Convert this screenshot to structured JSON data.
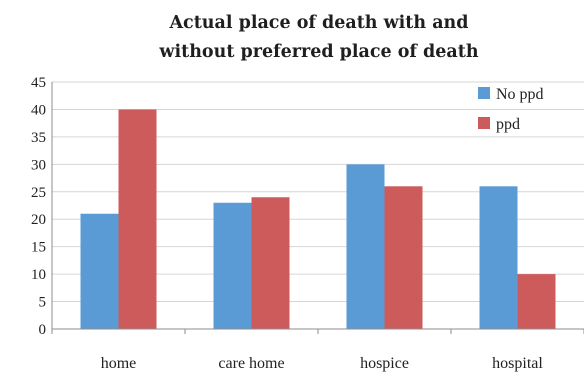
{
  "chart_data": {
    "type": "bar",
    "title_lines": [
      "Actual place of death with and",
      "without preferred place of death"
    ],
    "categories": [
      "home",
      "care home",
      "hospice",
      "hospital"
    ],
    "series": [
      {
        "name": "No ppd",
        "color": "#5b9bd5",
        "values": [
          21,
          23,
          30,
          26
        ]
      },
      {
        "name": "ppd",
        "color": "#cd5b5b",
        "values": [
          40,
          24,
          26,
          10
        ]
      }
    ],
    "ylim": [
      0,
      45
    ],
    "yticks": [
      0,
      5,
      10,
      15,
      20,
      25,
      30,
      35,
      40,
      45
    ],
    "grid": true,
    "legend_position": "top-right"
  }
}
